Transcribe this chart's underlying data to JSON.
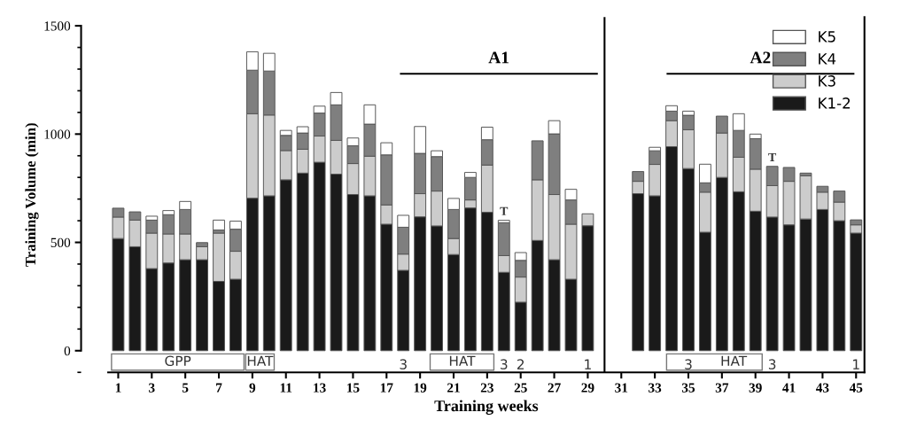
{
  "chart_data": {
    "type": "bar",
    "stacked": true,
    "xlabel": "Training weeks",
    "ylabel": "Training Volume (min)",
    "x": [
      1,
      2,
      3,
      4,
      5,
      6,
      7,
      8,
      9,
      10,
      11,
      12,
      13,
      14,
      15,
      16,
      17,
      18,
      19,
      20,
      21,
      22,
      23,
      24,
      25,
      26,
      27,
      28,
      29,
      32,
      33,
      34,
      35,
      36,
      37,
      38,
      39,
      40,
      41,
      42,
      43,
      44,
      45
    ],
    "series": [
      {
        "name": "K1-2",
        "color": "#1a1a1a",
        "values": [
          518,
          480,
          379,
          405,
          420,
          420,
          320,
          330,
          704,
          715,
          789,
          820,
          870,
          815,
          721,
          715,
          584,
          371,
          618,
          576,
          444,
          659,
          639,
          362,
          224,
          509,
          420,
          330,
          577,
          725,
          715,
          942,
          841,
          547,
          800,
          734,
          644,
          617,
          581,
          608,
          652,
          600,
          543
        ]
      },
      {
        "name": "K3",
        "color": "#cccccc",
        "values": [
          99,
          123,
          164,
          134,
          119,
          60,
          223,
          129,
          390,
          373,
          135,
          110,
          121,
          156,
          143,
          183,
          89,
          75,
          107,
          161,
          74,
          37,
          218,
          77,
          116,
          280,
          301,
          254,
          55,
          57,
          145,
          120,
          179,
          185,
          205,
          159,
          194,
          145,
          201,
          199,
          80,
          86,
          38
        ]
      },
      {
        "name": "K4",
        "color": "#7f7f7f",
        "values": [
          41,
          38,
          60,
          89,
          113,
          19,
          14,
          102,
          201,
          203,
          70,
          75,
          106,
          164,
          82,
          148,
          231,
          124,
          186,
          159,
          134,
          104,
          117,
          152,
          77,
          180,
          280,
          112,
          null,
          45,
          63,
          44,
          67,
          43,
          78,
          124,
          141,
          89,
          64,
          13,
          27,
          51,
          23
        ]
      },
      {
        "name": "K5",
        "color": "#ffffff",
        "values": [
          null,
          null,
          18,
          19,
          37,
          null,
          46,
          37,
          85,
          82,
          23,
          29,
          32,
          57,
          36,
          89,
          56,
          55,
          124,
          27,
          51,
          23,
          58,
          11,
          36,
          null,
          61,
          49,
          null,
          null,
          16,
          25,
          19,
          86,
          null,
          77,
          21,
          null,
          null,
          null,
          null,
          null,
          null
        ]
      }
    ],
    "xlim": [
      0.4,
      45.5
    ],
    "xticks": [
      1,
      3,
      5,
      7,
      9,
      11,
      13,
      15,
      17,
      19,
      21,
      23,
      25,
      27,
      29,
      31,
      33,
      35,
      37,
      39,
      41,
      43,
      45
    ],
    "ylim": [
      -100,
      1540
    ],
    "yticks": [
      0,
      500,
      1000,
      1500
    ],
    "legend": "top right",
    "ref_lines": [
      {
        "axis": "x",
        "value": 30,
        "color": "#000000"
      }
    ],
    "annotations": [
      "A1",
      "A2",
      "GPP",
      "HAT",
      "HAT",
      "HAT",
      {
        "text": "T",
        "x": 24,
        "y": 602
      },
      {
        "text": "T",
        "x": 40,
        "y": 851
      },
      {
        "text": "3",
        "x": 18,
        "y": 0
      },
      {
        "text": "3",
        "x": 24,
        "y": 0
      },
      {
        "text": "2",
        "x": 25,
        "y": 0
      },
      {
        "text": "1",
        "x": 29,
        "y": 0
      },
      {
        "text": "3",
        "x": 35,
        "y": 0
      },
      {
        "text": "3",
        "x": 40,
        "y": 0
      },
      {
        "text": "1",
        "x": 45,
        "y": 0
      }
    ]
  }
}
